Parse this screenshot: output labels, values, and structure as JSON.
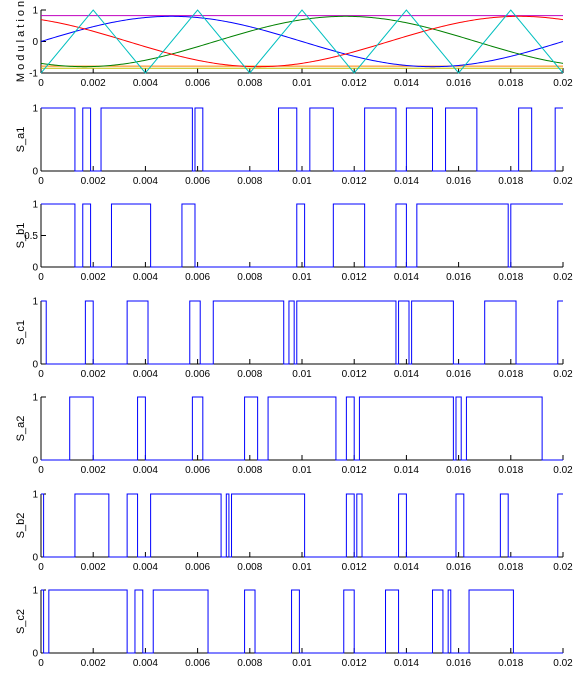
{
  "chart_data": [
    {
      "type": "line",
      "ylabel": "M o d u l a t i o n",
      "xlim": [
        0,
        0.02
      ],
      "ylim": [
        -1,
        1
      ],
      "xticks": [
        "0",
        "0.002",
        "0.004",
        "0.006",
        "0.008",
        "0.01",
        "0.012",
        "0.014",
        "0.016",
        "0.018",
        "0.02"
      ],
      "yticks": [
        "-1",
        "0",
        "1"
      ],
      "carrier": {
        "color": "#00bfbf",
        "period": 0.004,
        "peak_at": 0.002
      },
      "series": [
        {
          "amplitude": 0.8,
          "phase_deg": 0,
          "color": "#0000ff"
        },
        {
          "amplitude": 0.8,
          "phase_deg": -120,
          "color": "#008000"
        },
        {
          "amplitude": 0.8,
          "phase_deg": 120,
          "color": "#ff0000"
        }
      ],
      "hlines": [
        {
          "y": 0.82,
          "color": "#bf00bf"
        },
        {
          "y": -0.85,
          "color": "#bfbf00"
        },
        {
          "y": -0.78,
          "color": "#ff8000"
        }
      ]
    },
    {
      "type": "line",
      "ylabel": "S_a1",
      "ylim": [
        0,
        1
      ],
      "xlim": [
        0,
        0.02
      ],
      "xticks": [
        "0",
        "0.002",
        "0.004",
        "0.006",
        "0.008",
        "0.01",
        "0.012",
        "0.014",
        "0.016",
        "0.018",
        "0.02"
      ],
      "yticks": [
        "0",
        "1"
      ],
      "x": [
        0,
        0.0013,
        0.0016,
        0.0019,
        0.0023,
        0.0058,
        0.0059,
        0.0062,
        0.0091,
        0.0098,
        0.0103,
        0.0112,
        0.0124,
        0.0136,
        0.014,
        0.015,
        0.0155,
        0.0167,
        0.0183,
        0.0188,
        0.0197,
        0.02
      ],
      "y": [
        1,
        0,
        1,
        0,
        1,
        0,
        1,
        0,
        1,
        0,
        1,
        0,
        1,
        0,
        1,
        0,
        1,
        0,
        1,
        0,
        1,
        1
      ]
    },
    {
      "type": "line",
      "ylabel": "S_b1",
      "ylim": [
        0,
        1
      ],
      "xlim": [
        0,
        0.02
      ],
      "xticks": [
        "0",
        "0.002",
        "0.004",
        "0.006",
        "0.008",
        "0.01",
        "0.012",
        "0.014",
        "0.016",
        "0.018",
        "0.02"
      ],
      "yticks": [
        "0",
        "0.5",
        "1"
      ],
      "x": [
        0,
        0.0013,
        0.0016,
        0.0019,
        0.0027,
        0.0042,
        0.0054,
        0.0059,
        0.0098,
        0.0101,
        0.0112,
        0.0124,
        0.0136,
        0.014,
        0.0144,
        0.0179,
        0.018,
        0.02
      ],
      "y": [
        1,
        0,
        1,
        0,
        1,
        0,
        1,
        0,
        1,
        0,
        1,
        0,
        1,
        0,
        1,
        0,
        1,
        1
      ]
    },
    {
      "type": "line",
      "ylabel": "S_c1",
      "ylim": [
        0,
        1
      ],
      "xlim": [
        0,
        0.02
      ],
      "xticks": [
        "0",
        "0.002",
        "0.004",
        "0.006",
        "0.008",
        "0.01",
        "0.012",
        "0.014",
        "0.016",
        "0.018",
        "0.02"
      ],
      "yticks": [
        "0",
        "1"
      ],
      "x": [
        0,
        0.0002,
        0.0017,
        0.002,
        0.0033,
        0.0041,
        0.0057,
        0.0061,
        0.0066,
        0.0093,
        0.0095,
        0.0097,
        0.0098,
        0.0136,
        0.0137,
        0.0141,
        0.0142,
        0.0158,
        0.017,
        0.0182,
        0.0198,
        0.02
      ],
      "y": [
        1,
        0,
        1,
        0,
        1,
        0,
        1,
        0,
        1,
        0,
        1,
        0,
        1,
        0,
        1,
        0,
        1,
        0,
        1,
        0,
        1,
        1
      ]
    },
    {
      "type": "line",
      "ylabel": "S_a2",
      "ylim": [
        0,
        1
      ],
      "xlim": [
        0,
        0.02
      ],
      "xticks": [
        "0",
        "0.002",
        "0.004",
        "0.006",
        "0.008",
        "0.01",
        "0.012",
        "0.014",
        "0.016",
        "0.018",
        "0.02"
      ],
      "yticks": [
        "0",
        "1"
      ],
      "x": [
        0,
        0.0011,
        0.002,
        0.0037,
        0.004,
        0.0058,
        0.0062,
        0.0078,
        0.0083,
        0.0087,
        0.0113,
        0.0117,
        0.012,
        0.0122,
        0.0158,
        0.0159,
        0.0161,
        0.0163,
        0.0192,
        0.02
      ],
      "y": [
        0,
        1,
        0,
        1,
        0,
        1,
        0,
        1,
        0,
        1,
        0,
        1,
        0,
        1,
        0,
        1,
        0,
        1,
        0,
        0
      ]
    },
    {
      "type": "line",
      "ylabel": "S_b2",
      "ylim": [
        0,
        1
      ],
      "xlim": [
        0,
        0.02
      ],
      "xticks": [
        "0",
        "0.002",
        "0.004",
        "0.006",
        "0.008",
        "0.01",
        "0.012",
        "0.014",
        "0.016",
        "0.018",
        "0.02"
      ],
      "yticks": [
        "0",
        "1"
      ],
      "x": [
        0,
        0.0001,
        0.0013,
        0.0026,
        0.0033,
        0.0037,
        0.0042,
        0.0069,
        0.0071,
        0.0072,
        0.0073,
        0.0101,
        0.0117,
        0.012,
        0.0121,
        0.0123,
        0.0137,
        0.014,
        0.0159,
        0.0162,
        0.0176,
        0.0179,
        0.0198,
        0.02
      ],
      "y": [
        1,
        0,
        1,
        0,
        1,
        0,
        1,
        0,
        1,
        0,
        1,
        0,
        1,
        0,
        1,
        0,
        1,
        0,
        1,
        0,
        1,
        0,
        1,
        1
      ]
    },
    {
      "type": "line",
      "ylabel": "S_c2",
      "ylim": [
        0,
        1
      ],
      "xlim": [
        0,
        0.02
      ],
      "xticks": [
        "0",
        "0.002",
        "0.004",
        "0.006",
        "0.008",
        "0.01",
        "0.012",
        "0.014",
        "0.016",
        "0.018",
        "0.02"
      ],
      "yticks": [
        "0",
        "1"
      ],
      "x": [
        0,
        0.0001,
        0.0003,
        0.0033,
        0.0036,
        0.0039,
        0.0043,
        0.0064,
        0.0078,
        0.0082,
        0.0096,
        0.0099,
        0.0116,
        0.012,
        0.0132,
        0.0137,
        0.015,
        0.0154,
        0.0156,
        0.0157,
        0.0164,
        0.0181,
        0.02
      ],
      "y": [
        1,
        0,
        1,
        0,
        1,
        0,
        1,
        0,
        1,
        0,
        1,
        0,
        1,
        0,
        1,
        0,
        1,
        0,
        1,
        0,
        1,
        0,
        0
      ]
    }
  ]
}
